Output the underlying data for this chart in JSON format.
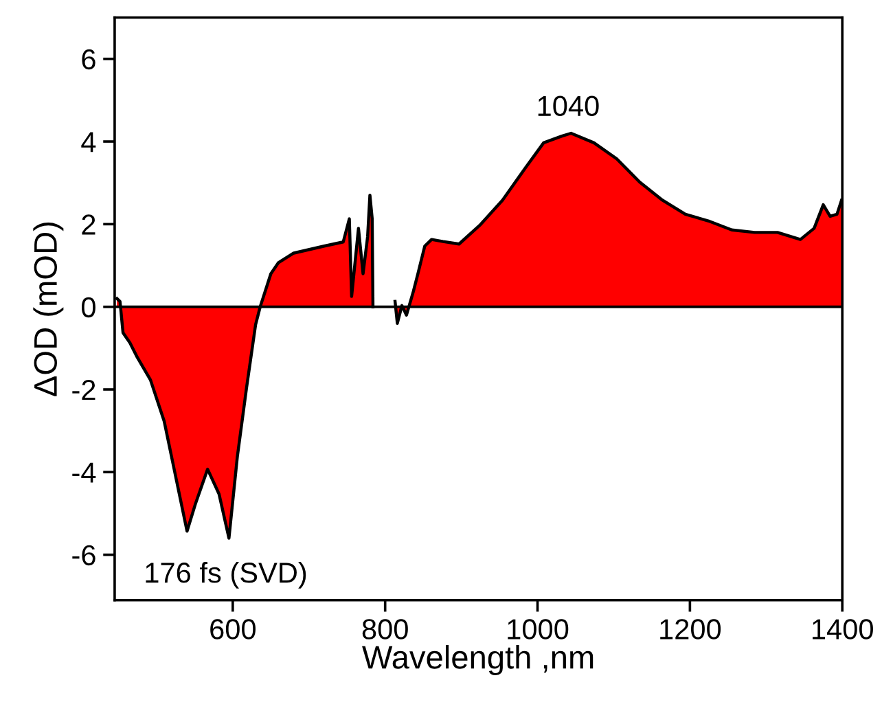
{
  "chart_data": {
    "type": "area",
    "xlabel": "Wavelength ,nm",
    "ylabel": "ΔOD (mOD)",
    "x": [
      448,
      452,
      456,
      465,
      474,
      492,
      510,
      525,
      540,
      551,
      567,
      582,
      595,
      606,
      618,
      630,
      636,
      650,
      660,
      680,
      720,
      745,
      753,
      756,
      765,
      771,
      777,
      780,
      783,
      784,
      800,
      813,
      816,
      822,
      828,
      837,
      843,
      852,
      861,
      876,
      897,
      924,
      954,
      984,
      1008,
      1032,
      1044,
      1074,
      1104,
      1134,
      1164,
      1194,
      1224,
      1255,
      1285,
      1315,
      1345,
      1363,
      1375,
      1384,
      1393,
      1399
    ],
    "series": [
      {
        "color": "#ff0000",
        "values": [
          0.2,
          0.13,
          -0.63,
          -0.87,
          -1.2,
          -1.77,
          -2.77,
          -4.1,
          -5.43,
          -4.77,
          -3.93,
          -4.53,
          -5.6,
          -3.63,
          -1.97,
          -0.43,
          0,
          0.8,
          1.07,
          1.3,
          1.47,
          1.57,
          2.13,
          0.25,
          1.9,
          0.8,
          1.7,
          2.7,
          2.13,
          0,
          null,
          0.13,
          -0.4,
          0.03,
          -0.2,
          0.37,
          0.8,
          1.47,
          1.63,
          1.58,
          1.52,
          1.97,
          2.58,
          3.36,
          3.97,
          4.13,
          4.2,
          3.97,
          3.58,
          3.02,
          2.58,
          2.24,
          2.08,
          1.86,
          1.8,
          1.8,
          1.63,
          1.9,
          2.47,
          2.19,
          2.24,
          2.58
        ]
      }
    ],
    "xlim": [
      445,
      1400
    ],
    "ylim": [
      -7.1,
      7
    ],
    "xticks": [
      600,
      800,
      1000,
      1200,
      1400
    ],
    "yticks": [
      -6,
      -4,
      -2,
      0,
      2,
      4,
      6
    ],
    "ref_lines": [
      {
        "axis": "y",
        "value": 0
      }
    ],
    "annotations": [
      {
        "text": "1040",
        "x": 1040,
        "y": 4.2
      },
      "176 fs (SVD)"
    ],
    "grid": false,
    "legend": false
  }
}
